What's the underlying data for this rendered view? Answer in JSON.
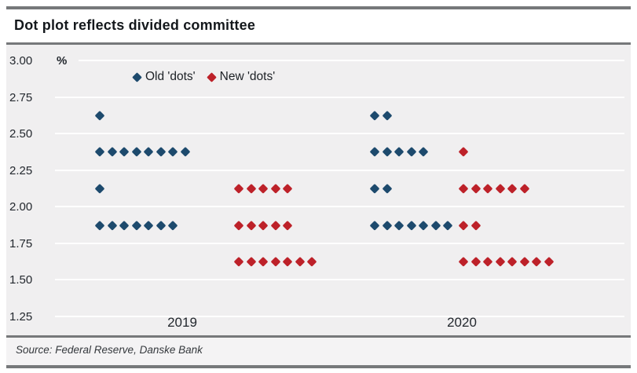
{
  "header": {
    "title": "Dot plot reflects divided committee"
  },
  "footer": {
    "source": "Source: Federal Reserve, Danske Bank"
  },
  "colors": {
    "old_dots": "#1d4a6d",
    "new_dots": "#bd2129",
    "panel_background": "#f0eff0",
    "gridline": "#ffffff",
    "rule": "#76787a"
  },
  "chart_data": {
    "type": "scatter",
    "title": "Dot plot reflects divided committee",
    "ylabel": "%",
    "xlabel": "",
    "ylim": [
      1.25,
      3.0
    ],
    "yticks": [
      3.0,
      2.75,
      2.5,
      2.25,
      2.0,
      1.75,
      1.5,
      1.25
    ],
    "ytick_labels": [
      "3.00",
      "2.75",
      "2.50",
      "2.25",
      "2.00",
      "1.75",
      "1.50",
      "1.25"
    ],
    "grid": true,
    "legend_position": "top-left-inside",
    "categories": [
      "2019",
      "2020"
    ],
    "series": [
      {
        "name": "Old 'dots'",
        "color": "#1d4a6d",
        "data": [
          {
            "category": "2019",
            "dots": [
              {
                "rate": 2.625,
                "count": 1
              },
              {
                "rate": 2.375,
                "count": 8
              },
              {
                "rate": 2.125,
                "count": 1
              },
              {
                "rate": 1.875,
                "count": 7
              }
            ]
          },
          {
            "category": "2020",
            "dots": [
              {
                "rate": 2.625,
                "count": 2
              },
              {
                "rate": 2.375,
                "count": 5
              },
              {
                "rate": 2.125,
                "count": 2
              },
              {
                "rate": 1.875,
                "count": 7
              }
            ]
          }
        ]
      },
      {
        "name": "New 'dots'",
        "color": "#bd2129",
        "data": [
          {
            "category": "2019",
            "dots": [
              {
                "rate": 2.125,
                "count": 5
              },
              {
                "rate": 1.875,
                "count": 5
              },
              {
                "rate": 1.625,
                "count": 7
              }
            ]
          },
          {
            "category": "2020",
            "dots": [
              {
                "rate": 2.375,
                "count": 1
              },
              {
                "rate": 2.125,
                "count": 6
              },
              {
                "rate": 1.875,
                "count": 2
              },
              {
                "rate": 1.625,
                "count": 8
              }
            ]
          }
        ]
      }
    ]
  }
}
